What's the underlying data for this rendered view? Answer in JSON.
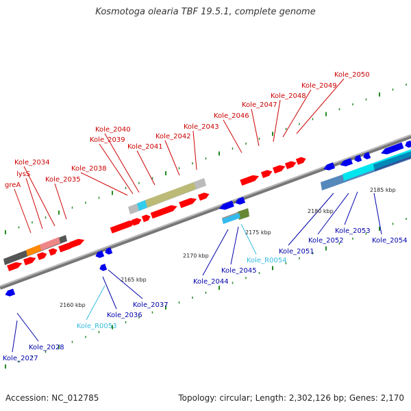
{
  "title": "Kosmotoga olearia TBF 19.5.1, complete genome",
  "footer": {
    "accession": "Accession: NC_012785",
    "summary": "Topology: circular; Length: 2,302,126 bp; Genes: 2,170"
  },
  "colors": {
    "forward_gene": "#ff0000",
    "reverse_gene": "#0000ee",
    "forward_label": "#cc0000",
    "reverse_label": "#0000aa",
    "rna_label": "#33bbdd",
    "backbone": "#888888",
    "dots": "#228822"
  },
  "scale_ticks": [
    {
      "label": "2160 kbp"
    },
    {
      "label": "2165 kbp"
    },
    {
      "label": "2170 kbp"
    },
    {
      "label": "2175 kbp"
    },
    {
      "label": "2180 kbp"
    },
    {
      "label": "2185 kbp"
    }
  ],
  "gene_labels": {
    "top": [
      {
        "text": "greA",
        "strand": "forward"
      },
      {
        "text": "lysS",
        "strand": "forward"
      },
      {
        "text": "Kole_2034",
        "strand": "forward"
      },
      {
        "text": "Kole_2035",
        "strand": "forward"
      },
      {
        "text": "Kole_2038",
        "strand": "forward"
      },
      {
        "text": "Kole_2039",
        "strand": "forward"
      },
      {
        "text": "Kole_2040",
        "strand": "forward"
      },
      {
        "text": "Kole_2041",
        "strand": "forward"
      },
      {
        "text": "Kole_2042",
        "strand": "forward"
      },
      {
        "text": "Kole_2043",
        "strand": "forward"
      },
      {
        "text": "Kole_2046",
        "strand": "forward"
      },
      {
        "text": "Kole_2047",
        "strand": "forward"
      },
      {
        "text": "Kole_2048",
        "strand": "forward"
      },
      {
        "text": "Kole_2049",
        "strand": "forward"
      },
      {
        "text": "Kole_2050",
        "strand": "forward"
      }
    ],
    "bottom": [
      {
        "text": "Kole_2027",
        "strand": "reverse"
      },
      {
        "text": "Kole_2028",
        "strand": "reverse"
      },
      {
        "text": "Kole_R0053",
        "strand": "rna"
      },
      {
        "text": "Kole_2036",
        "strand": "reverse"
      },
      {
        "text": "Kole_2037",
        "strand": "reverse"
      },
      {
        "text": "Kole_2044",
        "strand": "reverse"
      },
      {
        "text": "Kole_2045",
        "strand": "reverse"
      },
      {
        "text": "Kole_R0054",
        "strand": "rna"
      },
      {
        "text": "Kole_2051",
        "strand": "reverse"
      },
      {
        "text": "Kole_2052",
        "strand": "reverse"
      },
      {
        "text": "Kole_2053",
        "strand": "reverse"
      },
      {
        "text": "Kole_2054",
        "strand": "reverse"
      }
    ]
  }
}
